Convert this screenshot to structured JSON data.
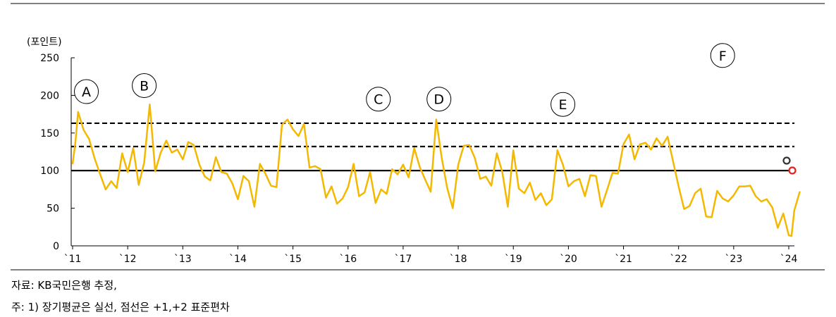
{
  "source": "자료: KB국민은행 추정,",
  "note": "주: 1) 장기평균은 실선, 점선은 +1,+2 표준편차",
  "chart_data": {
    "type": "line",
    "ylabel": "(포인트)",
    "ylim": [
      0,
      250
    ],
    "yticks": [
      "0",
      "50",
      "100",
      "150",
      "200",
      "250"
    ],
    "xlim": [
      2011,
      2024.2
    ],
    "xticks": [
      {
        "x": 2011,
        "label": "`11"
      },
      {
        "x": 2012,
        "label": "`12"
      },
      {
        "x": 2013,
        "label": "`13"
      },
      {
        "x": 2014,
        "label": "`14"
      },
      {
        "x": 2015,
        "label": "`15"
      },
      {
        "x": 2016,
        "label": "`16"
      },
      {
        "x": 2017,
        "label": "`17"
      },
      {
        "x": 2018,
        "label": "`18"
      },
      {
        "x": 2019,
        "label": "`19"
      },
      {
        "x": 2020,
        "label": "`20"
      },
      {
        "x": 2021,
        "label": "`21"
      },
      {
        "x": 2022,
        "label": "`22"
      },
      {
        "x": 2023,
        "label": "`23"
      },
      {
        "x": 2024,
        "label": "`24"
      }
    ],
    "reference_lines": {
      "mean": 100,
      "plus1sd": 132,
      "plus2sd": 163
    },
    "series": [
      {
        "color": "#F5B800",
        "values": [
          [
            2011.0,
            109
          ],
          [
            2011.05,
            137
          ],
          [
            2011.1,
            178
          ],
          [
            2011.2,
            154
          ],
          [
            2011.3,
            142
          ],
          [
            2011.4,
            116
          ],
          [
            2011.5,
            95
          ],
          [
            2011.6,
            75
          ],
          [
            2011.7,
            86
          ],
          [
            2011.8,
            77
          ],
          [
            2011.9,
            123
          ],
          [
            2012.0,
            98
          ],
          [
            2012.1,
            130
          ],
          [
            2012.2,
            81
          ],
          [
            2012.3,
            111
          ],
          [
            2012.4,
            188
          ],
          [
            2012.5,
            99
          ],
          [
            2012.6,
            124
          ],
          [
            2012.7,
            140
          ],
          [
            2012.8,
            124
          ],
          [
            2012.9,
            128
          ],
          [
            2013.0,
            115
          ],
          [
            2013.1,
            138
          ],
          [
            2013.2,
            134
          ],
          [
            2013.3,
            108
          ],
          [
            2013.4,
            92
          ],
          [
            2013.5,
            87
          ],
          [
            2013.6,
            118
          ],
          [
            2013.7,
            98
          ],
          [
            2013.8,
            96
          ],
          [
            2013.9,
            83
          ],
          [
            2014.0,
            62
          ],
          [
            2014.1,
            93
          ],
          [
            2014.2,
            86
          ],
          [
            2014.3,
            52
          ],
          [
            2014.4,
            109
          ],
          [
            2014.5,
            96
          ],
          [
            2014.6,
            80
          ],
          [
            2014.7,
            78
          ],
          [
            2014.8,
            161
          ],
          [
            2014.9,
            168
          ],
          [
            2015.0,
            155
          ],
          [
            2015.1,
            146
          ],
          [
            2015.2,
            162
          ],
          [
            2015.3,
            104
          ],
          [
            2015.4,
            106
          ],
          [
            2015.5,
            102
          ],
          [
            2015.6,
            64
          ],
          [
            2015.7,
            79
          ],
          [
            2015.8,
            56
          ],
          [
            2015.9,
            63
          ],
          [
            2016.0,
            78
          ],
          [
            2016.1,
            109
          ],
          [
            2016.2,
            66
          ],
          [
            2016.3,
            71
          ],
          [
            2016.4,
            98
          ],
          [
            2016.5,
            57
          ],
          [
            2016.6,
            75
          ],
          [
            2016.7,
            69
          ],
          [
            2016.8,
            102
          ],
          [
            2016.9,
            95
          ],
          [
            2017.0,
            108
          ],
          [
            2017.1,
            91
          ],
          [
            2017.2,
            130
          ],
          [
            2017.3,
            105
          ],
          [
            2017.4,
            88
          ],
          [
            2017.5,
            72
          ],
          [
            2017.6,
            168
          ],
          [
            2017.7,
            117
          ],
          [
            2017.8,
            77
          ],
          [
            2017.9,
            50
          ],
          [
            2018.0,
            108
          ],
          [
            2018.1,
            133
          ],
          [
            2018.2,
            134
          ],
          [
            2018.3,
            117
          ],
          [
            2018.4,
            89
          ],
          [
            2018.5,
            92
          ],
          [
            2018.6,
            80
          ],
          [
            2018.7,
            123
          ],
          [
            2018.8,
            98
          ],
          [
            2018.9,
            52
          ],
          [
            2019.0,
            127
          ],
          [
            2019.1,
            76
          ],
          [
            2019.2,
            70
          ],
          [
            2019.3,
            84
          ],
          [
            2019.4,
            61
          ],
          [
            2019.5,
            70
          ],
          [
            2019.6,
            54
          ],
          [
            2019.7,
            62
          ],
          [
            2019.8,
            127
          ],
          [
            2019.9,
            108
          ],
          [
            2020.0,
            79
          ],
          [
            2020.1,
            86
          ],
          [
            2020.2,
            89
          ],
          [
            2020.3,
            66
          ],
          [
            2020.4,
            94
          ],
          [
            2020.5,
            93
          ],
          [
            2020.6,
            52
          ],
          [
            2020.7,
            74
          ],
          [
            2020.8,
            97
          ],
          [
            2020.9,
            96
          ],
          [
            2021.0,
            135
          ],
          [
            2021.1,
            148
          ],
          [
            2021.2,
            115
          ],
          [
            2021.3,
            135
          ],
          [
            2021.4,
            137
          ],
          [
            2021.5,
            128
          ],
          [
            2021.6,
            143
          ],
          [
            2021.7,
            133
          ],
          [
            2021.8,
            145
          ],
          [
            2021.9,
            112
          ],
          [
            2022.0,
            79
          ],
          [
            2022.1,
            49
          ],
          [
            2022.2,
            53
          ],
          [
            2022.3,
            70
          ],
          [
            2022.4,
            76
          ],
          [
            2022.5,
            39
          ],
          [
            2022.6,
            38
          ],
          [
            2022.7,
            73
          ],
          [
            2022.8,
            63
          ],
          [
            2022.9,
            59
          ],
          [
            2023.0,
            67
          ],
          [
            2023.1,
            79
          ],
          [
            2023.2,
            79
          ],
          [
            2023.3,
            80
          ],
          [
            2023.4,
            66
          ],
          [
            2023.5,
            59
          ],
          [
            2023.6,
            62
          ],
          [
            2023.7,
            51
          ],
          [
            2023.8,
            24
          ],
          [
            2023.9,
            43
          ],
          [
            2024.0,
            14
          ],
          [
            2024.05,
            13
          ],
          [
            2024.1,
            47
          ],
          [
            2024.2,
            72
          ]
        ]
      }
    ],
    "annotations": [
      {
        "label": "A",
        "x": 2011.25,
        "y": 205
      },
      {
        "label": "B",
        "x": 2012.3,
        "y": 213
      },
      {
        "label": "C",
        "x": 2016.55,
        "y": 195
      },
      {
        "label": "D",
        "x": 2017.65,
        "y": 195
      },
      {
        "label": "E",
        "x": 2019.9,
        "y": 188
      },
      {
        "label": "F",
        "x": 2022.8,
        "y": 253
      }
    ]
  }
}
